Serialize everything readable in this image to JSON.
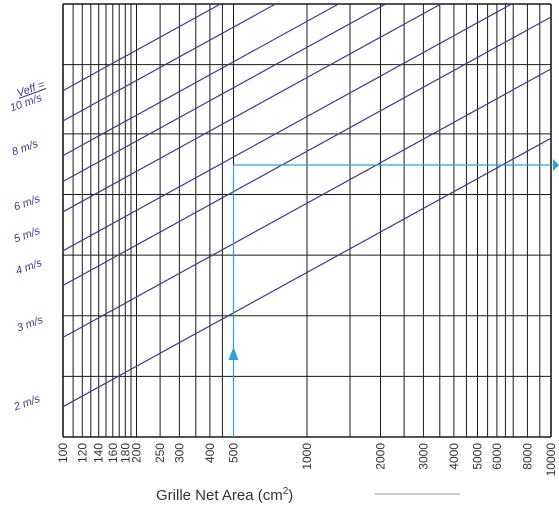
{
  "chart_data": {
    "type": "line",
    "x_scale": "log",
    "xlim": [
      100,
      10000
    ],
    "xlabel": "Grille Net Area (cm",
    "xlabel_sup": "2",
    "xlabel_close": ")",
    "x_ticks": [
      100,
      120,
      140,
      160,
      180,
      200,
      250,
      300,
      400,
      500,
      1000,
      2000,
      3000,
      4000,
      5000,
      6000,
      8000,
      10000
    ],
    "x_tick_labels": [
      "100",
      "120",
      "140",
      "160",
      "180",
      "200",
      "250",
      "300",
      "400",
      "500",
      "1000",
      "2000",
      "3000",
      "4000",
      "5000",
      "6000",
      "8000",
      "10000"
    ],
    "grid": true,
    "legend_header": "Veff =",
    "series": [
      {
        "name": "10 m/s",
        "values_at_x_100": 0.8
      },
      {
        "name": "",
        "values_at_x_100": 0.73
      },
      {
        "name": "8 m/s",
        "values_at_x_100": 0.65
      },
      {
        "name": "",
        "values_at_x_100": 0.59
      },
      {
        "name": "6 m/s",
        "values_at_x_100": 0.52
      },
      {
        "name": "5 m/s",
        "values_at_x_100": 0.43
      },
      {
        "name": "4 m/s",
        "values_at_x_100": 0.35
      },
      {
        "name": "3 m/s",
        "values_at_x_100": 0.23
      },
      {
        "name": "2 m/s",
        "values_at_x_100": 0.07
      }
    ],
    "example_path": {
      "x": 500,
      "color": "#29a3d6"
    },
    "colors": {
      "grid": "#1a1a1a",
      "series": "#3d3a8c",
      "example": "#29a3d6"
    }
  }
}
